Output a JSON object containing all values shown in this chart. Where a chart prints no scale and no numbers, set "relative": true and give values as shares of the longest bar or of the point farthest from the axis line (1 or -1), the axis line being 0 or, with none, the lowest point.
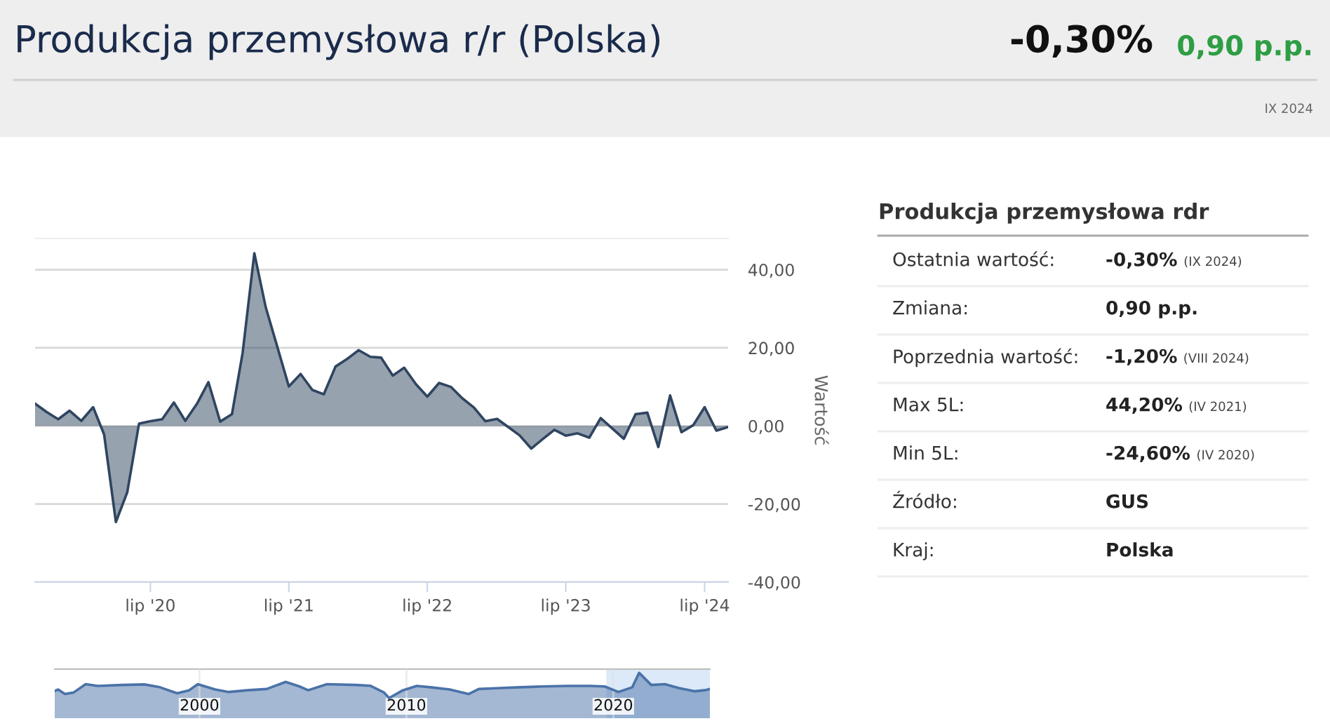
{
  "chart_data": [
    {
      "type": "area",
      "title": "Produkcja przemysłowa r/r (Polska)",
      "ylabel": "Wartość",
      "annotations": [
        "-0,30%",
        "0,90 p.p.",
        "IX 2024"
      ],
      "x": [
        "2019-09",
        "2019-10",
        "2019-11",
        "2019-12",
        "2020-01",
        "2020-02",
        "2020-03",
        "2020-04",
        "2020-05",
        "2020-06",
        "2020-07",
        "2020-08",
        "2020-09",
        "2020-10",
        "2020-11",
        "2020-12",
        "2021-01",
        "2021-02",
        "2021-03",
        "2021-04",
        "2021-05",
        "2021-06",
        "2021-07",
        "2021-08",
        "2021-09",
        "2021-10",
        "2021-11",
        "2021-12",
        "2022-01",
        "2022-02",
        "2022-03",
        "2022-04",
        "2022-05",
        "2022-06",
        "2022-07",
        "2022-08",
        "2022-09",
        "2022-10",
        "2022-11",
        "2022-12",
        "2023-01",
        "2023-02",
        "2023-03",
        "2023-04",
        "2023-05",
        "2023-06",
        "2023-07",
        "2023-08",
        "2023-09",
        "2023-10",
        "2023-11",
        "2023-12",
        "2024-01",
        "2024-02",
        "2024-03",
        "2024-04",
        "2024-05",
        "2024-06",
        "2024-07",
        "2024-08",
        "2024-09"
      ],
      "series": [
        {
          "color": "#2f4560",
          "values": [
            5.7,
            3.6,
            1.7,
            3.9,
            1.3,
            4.8,
            -2.2,
            -24.6,
            -17.0,
            0.6,
            1.2,
            1.7,
            6.0,
            1.3,
            5.7,
            11.2,
            1.1,
            3.0,
            18.6,
            44.2,
            30.4,
            20.1,
            10.1,
            13.3,
            9.2,
            8.1,
            15.2,
            17.1,
            19.4,
            17.7,
            17.5,
            12.9,
            14.9,
            10.7,
            7.5,
            11.0,
            10.0,
            7.1,
            4.7,
            1.2,
            1.8,
            -0.4,
            -2.4,
            -5.8,
            -3.4,
            -1.0,
            -2.5,
            -1.9,
            -3.0,
            2.0,
            -0.7,
            -3.3,
            3.0,
            3.4,
            -5.4,
            7.8,
            -1.6,
            0.2,
            4.8,
            -1.2,
            -0.3
          ]
        }
      ],
      "xlim": [
        "2019-09",
        "2024-09"
      ],
      "xticks": [
        {
          "value": "2020-07",
          "label": "lip '20"
        },
        {
          "value": "2021-07",
          "label": "lip '21"
        },
        {
          "value": "2022-07",
          "label": "lip '22"
        },
        {
          "value": "2023-07",
          "label": "lip '23"
        },
        {
          "value": "2024-07",
          "label": "lip '24"
        }
      ],
      "ylim": [
        -40,
        48
      ],
      "yticks": [
        {
          "value": -40,
          "label": "-40,00"
        },
        {
          "value": -20,
          "label": "-20,00"
        },
        {
          "value": 0,
          "label": "0,00"
        },
        {
          "value": 20,
          "label": "20,00"
        },
        {
          "value": 40,
          "label": "40,00"
        }
      ],
      "grid": "y",
      "legend": false,
      "marker": "none",
      "line_style": "solid"
    },
    {
      "type": "area",
      "relative": true,
      "x": [
        "1993-01",
        "1993-03",
        "1993-07",
        "1993-12",
        "1994-07",
        "1995-02",
        "1996-04",
        "1997-05",
        "1998-02",
        "1998-12",
        "1999-07",
        "1999-12",
        "2000-10",
        "2001-06",
        "2002-05",
        "2003-04",
        "2004-03",
        "2004-11",
        "2005-04",
        "2006-03",
        "2007-08",
        "2008-04",
        "2008-12",
        "2009-03",
        "2009-11",
        "2010-07",
        "2011-03",
        "2012-02",
        "2013-01",
        "2013-07",
        "2014-05",
        "2015-07",
        "2016-08",
        "2017-10",
        "2018-12",
        "2019-08",
        "2020-04",
        "2020-12",
        "2021-04",
        "2021-11",
        "2022-07",
        "2023-03",
        "2023-12",
        "2024-06",
        "2024-09"
      ],
      "series": [
        {
          "color": "#4a72a8",
          "values": [
            0.28,
            0.34,
            0.16,
            0.22,
            0.55,
            0.48,
            0.52,
            0.54,
            0.43,
            0.19,
            0.31,
            0.55,
            0.34,
            0.24,
            0.31,
            0.36,
            0.64,
            0.46,
            0.31,
            0.55,
            0.52,
            0.49,
            0.22,
            0,
            0.31,
            0.48,
            0.43,
            0.34,
            0.16,
            0.36,
            0.39,
            0.43,
            0.46,
            0.48,
            0.48,
            0.46,
            0.24,
            0.43,
            1,
            0.52,
            0.55,
            0.4,
            0.27,
            0.31,
            0.36
          ]
        }
      ],
      "xlim": [
        "1993-01",
        "2024-09"
      ],
      "xticks": [
        "2000",
        "2010",
        "2020"
      ],
      "bands": [
        {
          "axis": "x",
          "from": "2019-09",
          "to": "2024-09",
          "color": "#cce0f5"
        }
      ],
      "grid": "x",
      "tick_labels": "x",
      "legend": false,
      "marker": "none",
      "line_style": "solid"
    },
    {
      "type": "other",
      "title": "Produkcja przemysłowa rdr",
      "annotations": [
        "Ostatnia wartość:",
        "-0,30%",
        "(IX 2024)",
        "Zmiana:",
        "0,90 p.p.",
        "Poprzednia wartość:",
        "-1,20%",
        "(VIII 2024)",
        "Max 5L:",
        "44,20%",
        "(IV 2021)",
        "Min 5L:",
        "-24,60%",
        "(IV 2020)",
        "Źródło:",
        "GUS",
        "Kraj:",
        "Polska"
      ]
    }
  ]
}
